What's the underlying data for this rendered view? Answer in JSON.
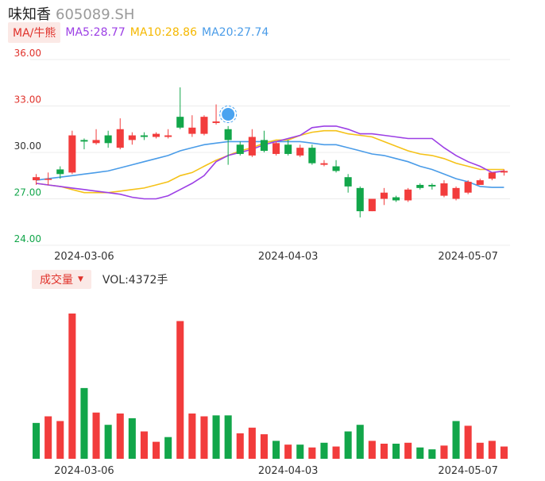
{
  "header": {
    "name": "味知香",
    "code": "605089.SH"
  },
  "ma_bar": {
    "selector_label": "MA/牛熊",
    "ma5_label": "MA5:28.77",
    "ma10_label": "MA10:28.86",
    "ma20_label": "MA20:27.74"
  },
  "vol_bar": {
    "selector_label": "成交量",
    "vol_label": "VOL:4372手"
  },
  "colors": {
    "up": "#f23c3c",
    "down": "#12a64a",
    "ma5": "#9c3fe5",
    "ma10": "#f5c218",
    "ma20": "#4a9ce8",
    "selector": "#e0322b"
  },
  "chart_data": [
    {
      "type": "candlestick",
      "y_ticks": [
        "36.00",
        "33.00",
        "30.00",
        "27.00",
        "24.00"
      ],
      "ylim": [
        24,
        36
      ],
      "x_ticks": [
        "2024-03-06",
        "2024-04-03",
        "2024-05-07"
      ],
      "x_tick_index": [
        4,
        21,
        36
      ],
      "grid": true,
      "candles": [
        {
          "o": 28.2,
          "h": 28.6,
          "l": 27.9,
          "c": 28.4
        },
        {
          "o": 28.3,
          "h": 28.7,
          "l": 27.9,
          "c": 28.3
        },
        {
          "o": 28.9,
          "h": 29.1,
          "l": 28.3,
          "c": 28.6
        },
        {
          "o": 28.7,
          "h": 31.4,
          "l": 28.6,
          "c": 31.1
        },
        {
          "o": 30.8,
          "h": 30.9,
          "l": 30.2,
          "c": 30.7
        },
        {
          "o": 30.6,
          "h": 31.5,
          "l": 30.5,
          "c": 30.8
        },
        {
          "o": 31.1,
          "h": 31.4,
          "l": 30.3,
          "c": 30.6
        },
        {
          "o": 30.3,
          "h": 32.2,
          "l": 30.2,
          "c": 31.5
        },
        {
          "o": 30.8,
          "h": 31.3,
          "l": 30.5,
          "c": 31.1
        },
        {
          "o": 31.1,
          "h": 31.3,
          "l": 30.8,
          "c": 31.0
        },
        {
          "o": 31.0,
          "h": 31.3,
          "l": 30.9,
          "c": 31.2
        },
        {
          "o": 31.0,
          "h": 31.5,
          "l": 30.9,
          "c": 31.1
        },
        {
          "o": 32.3,
          "h": 34.2,
          "l": 31.5,
          "c": 31.6
        },
        {
          "o": 31.2,
          "h": 32.4,
          "l": 31.0,
          "c": 31.6
        },
        {
          "o": 31.2,
          "h": 32.4,
          "l": 31.1,
          "c": 32.3
        },
        {
          "o": 31.9,
          "h": 33.1,
          "l": 31.8,
          "c": 32.0
        },
        {
          "o": 31.5,
          "h": 31.7,
          "l": 29.2,
          "c": 30.8
        },
        {
          "o": 30.5,
          "h": 30.7,
          "l": 29.8,
          "c": 29.9
        },
        {
          "o": 29.8,
          "h": 31.5,
          "l": 29.7,
          "c": 31.0
        },
        {
          "o": 30.8,
          "h": 31.4,
          "l": 30.0,
          "c": 30.1
        },
        {
          "o": 29.9,
          "h": 30.7,
          "l": 29.8,
          "c": 30.6
        },
        {
          "o": 30.5,
          "h": 30.8,
          "l": 29.8,
          "c": 29.9
        },
        {
          "o": 29.8,
          "h": 30.5,
          "l": 29.7,
          "c": 30.3
        },
        {
          "o": 30.3,
          "h": 30.5,
          "l": 29.2,
          "c": 29.3
        },
        {
          "o": 29.2,
          "h": 29.5,
          "l": 29.1,
          "c": 29.3
        },
        {
          "o": 29.1,
          "h": 29.5,
          "l": 28.7,
          "c": 28.8
        },
        {
          "o": 28.4,
          "h": 28.6,
          "l": 27.4,
          "c": 27.8
        },
        {
          "o": 27.7,
          "h": 27.8,
          "l": 25.8,
          "c": 26.2
        },
        {
          "o": 26.2,
          "h": 27.0,
          "l": 26.2,
          "c": 27.0
        },
        {
          "o": 27.0,
          "h": 27.7,
          "l": 26.6,
          "c": 27.4
        },
        {
          "o": 27.1,
          "h": 27.2,
          "l": 26.8,
          "c": 26.9
        },
        {
          "o": 26.9,
          "h": 27.7,
          "l": 26.8,
          "c": 27.6
        },
        {
          "o": 27.9,
          "h": 28.0,
          "l": 27.6,
          "c": 27.7
        },
        {
          "o": 27.9,
          "h": 28.0,
          "l": 27.6,
          "c": 27.8
        },
        {
          "o": 27.2,
          "h": 28.2,
          "l": 27.1,
          "c": 28.0
        },
        {
          "o": 27.0,
          "h": 27.8,
          "l": 26.9,
          "c": 27.7
        },
        {
          "o": 27.4,
          "h": 28.2,
          "l": 27.3,
          "c": 28.1
        },
        {
          "o": 27.9,
          "h": 28.3,
          "l": 27.9,
          "c": 28.2
        },
        {
          "o": 28.3,
          "h": 28.6,
          "l": 28.2,
          "c": 28.7
        },
        {
          "o": 28.7,
          "h": 28.9,
          "l": 28.5,
          "c": 28.8
        }
      ],
      "ma5": [
        28.0,
        27.9,
        27.8,
        27.7,
        27.6,
        27.5,
        27.4,
        27.3,
        27.1,
        27.0,
        27.0,
        27.2,
        27.6,
        28.0,
        28.5,
        29.4,
        29.8,
        30.0,
        30.2,
        30.5,
        30.7,
        30.9,
        31.1,
        31.6,
        31.7,
        31.7,
        31.5,
        31.2,
        31.2,
        31.1,
        31.0,
        30.9,
        30.9,
        30.9,
        30.3,
        29.8,
        29.4,
        29.1,
        28.7,
        28.8
      ],
      "ma10": [
        28.0,
        27.9,
        27.8,
        27.6,
        27.4,
        27.4,
        27.4,
        27.5,
        27.6,
        27.7,
        27.9,
        28.1,
        28.5,
        28.7,
        29.1,
        29.5,
        29.8,
        30.1,
        30.3,
        30.6,
        30.8,
        30.8,
        31.1,
        31.3,
        31.4,
        31.4,
        31.2,
        31.1,
        31.0,
        30.7,
        30.4,
        30.1,
        29.9,
        29.8,
        29.6,
        29.3,
        29.1,
        28.9,
        28.9,
        28.9
      ],
      "ma20": [
        28.2,
        28.3,
        28.4,
        28.5,
        28.6,
        28.7,
        28.8,
        29.0,
        29.2,
        29.4,
        29.6,
        29.8,
        30.1,
        30.3,
        30.5,
        30.6,
        30.7,
        30.7,
        30.7,
        30.7,
        30.7,
        30.7,
        30.7,
        30.6,
        30.5,
        30.5,
        30.3,
        30.1,
        29.9,
        29.8,
        29.6,
        29.4,
        29.1,
        28.9,
        28.6,
        28.3,
        28.1,
        27.8,
        27.74,
        27.74
      ]
    },
    {
      "type": "bar",
      "name": "成交量",
      "x_ticks": [
        "2024-03-06",
        "2024-04-03",
        "2024-05-07"
      ],
      "values": [
        3.8,
        4.5,
        4.0,
        15.4,
        7.5,
        4.9,
        3.6,
        4.8,
        4.3,
        2.9,
        1.8,
        2.3,
        14.6,
        4.8,
        4.5,
        4.6,
        4.6,
        2.7,
        3.3,
        2.6,
        1.9,
        1.5,
        1.5,
        1.2,
        1.7,
        1.3,
        2.9,
        3.6,
        1.9,
        1.6,
        1.6,
        1.7,
        1.2,
        1.0,
        1.4,
        4.0,
        3.5,
        1.7,
        1.9,
        1.3
      ],
      "up": [
        false,
        true,
        true,
        true,
        false,
        true,
        false,
        true,
        false,
        true,
        true,
        false,
        true,
        true,
        true,
        false,
        false,
        true,
        true,
        true,
        false,
        true,
        false,
        true,
        false,
        true,
        false,
        false,
        true,
        true,
        false,
        true,
        false,
        false,
        true,
        false,
        true,
        true,
        true,
        true
      ]
    }
  ]
}
